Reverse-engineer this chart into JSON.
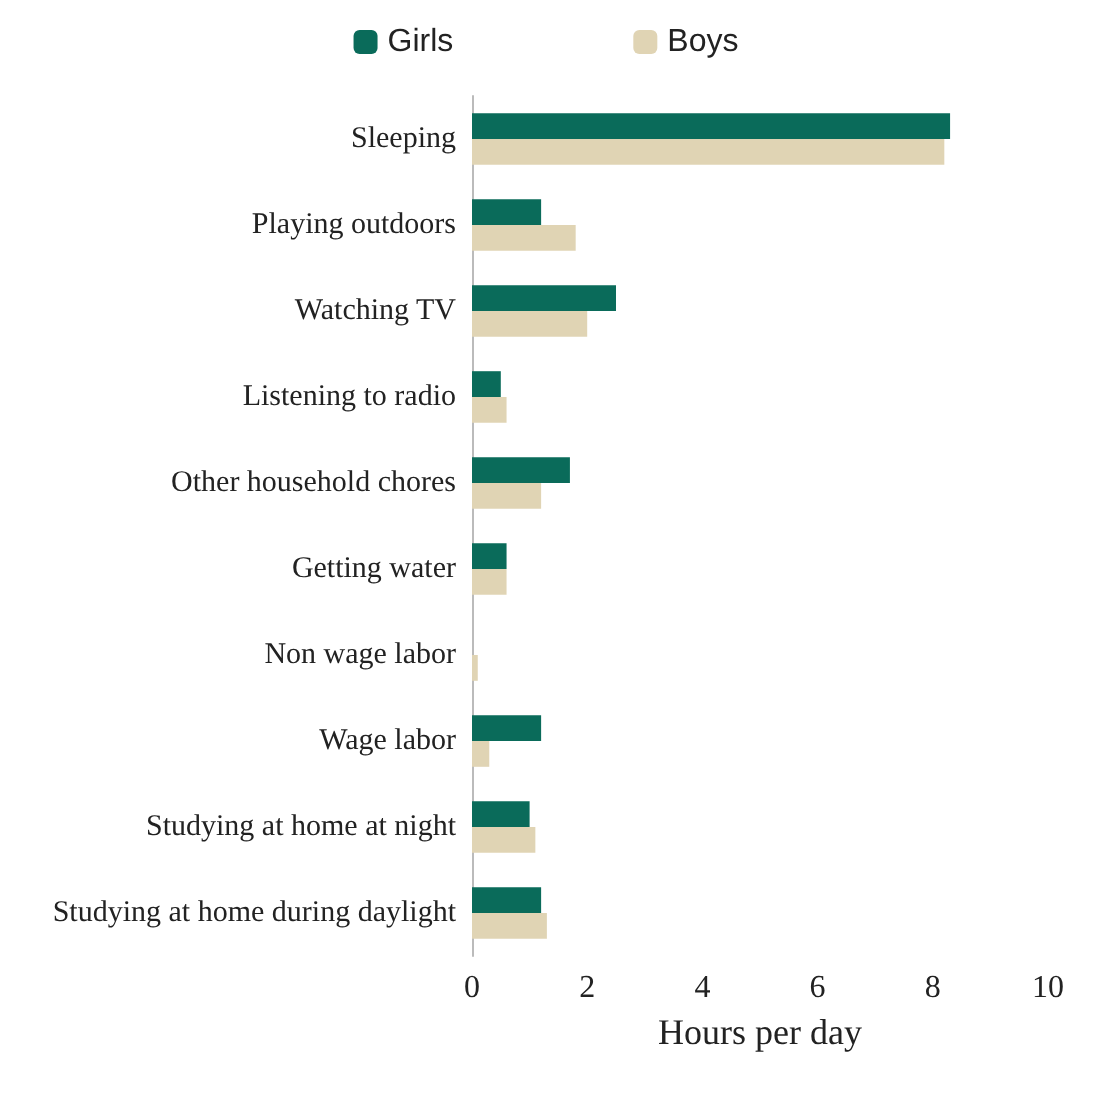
{
  "chart_data": {
    "type": "bar",
    "orientation": "horizontal",
    "xlabel": "Hours per day",
    "categories": [
      "Sleeping",
      "Playing outdoors",
      "Watching TV",
      "Listening to radio",
      "Other household chores",
      "Getting water",
      "Non wage labor",
      "Wage labor",
      "Studying at home at night",
      "Studying at home during daylight"
    ],
    "series": [
      {
        "name": "Girls",
        "color": "#0a6b5a",
        "values": [
          8.3,
          1.2,
          2.5,
          0.5,
          1.7,
          0.6,
          0,
          1.2,
          1.0,
          1.2
        ]
      },
      {
        "name": "Boys",
        "color": "#e0d4b4",
        "values": [
          8.2,
          1.8,
          2.0,
          0.6,
          1.2,
          0.6,
          0.1,
          0.3,
          1.1,
          1.3
        ]
      }
    ],
    "xlim": [
      0,
      10
    ],
    "xticks": [
      0,
      2,
      4,
      6,
      8,
      10
    ],
    "grid": false,
    "legend": "top"
  }
}
